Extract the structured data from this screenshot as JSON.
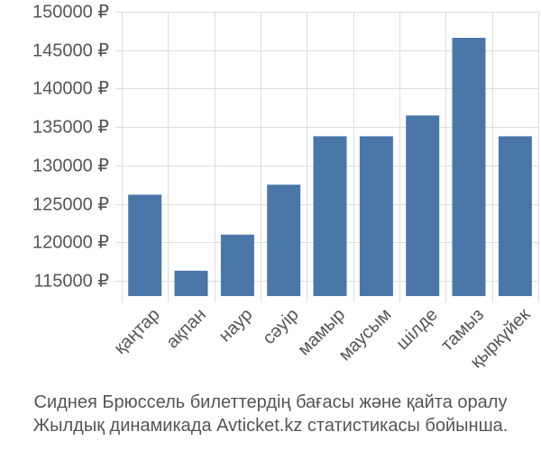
{
  "caption": {
    "line1": "Сиднея Брюссель билеттердің бағасы және қайта оралу",
    "line2": "Жылдық динамикада Avticket.kz статистикасы бойынша."
  },
  "chart_data": {
    "type": "bar",
    "categories": [
      "қаңтар",
      "ақпан",
      "наур",
      "сәуір",
      "мамыр",
      "маусым",
      "шілде",
      "тамыз",
      "қыркүйек"
    ],
    "values": [
      126200,
      116300,
      121000,
      127500,
      133800,
      133800,
      136500,
      146600,
      133800
    ],
    "ylim": [
      113000,
      150000
    ],
    "yticks": [
      115000,
      120000,
      125000,
      130000,
      135000,
      140000,
      145000,
      150000
    ],
    "ytick_labels": [
      "115000 ₽",
      "120000 ₽",
      "125000 ₽",
      "130000 ₽",
      "135000 ₽",
      "140000 ₽",
      "145000 ₽",
      "150000 ₽"
    ],
    "grid": true,
    "bar_color": "#4a77a8",
    "grid_color": "#dddddd"
  }
}
